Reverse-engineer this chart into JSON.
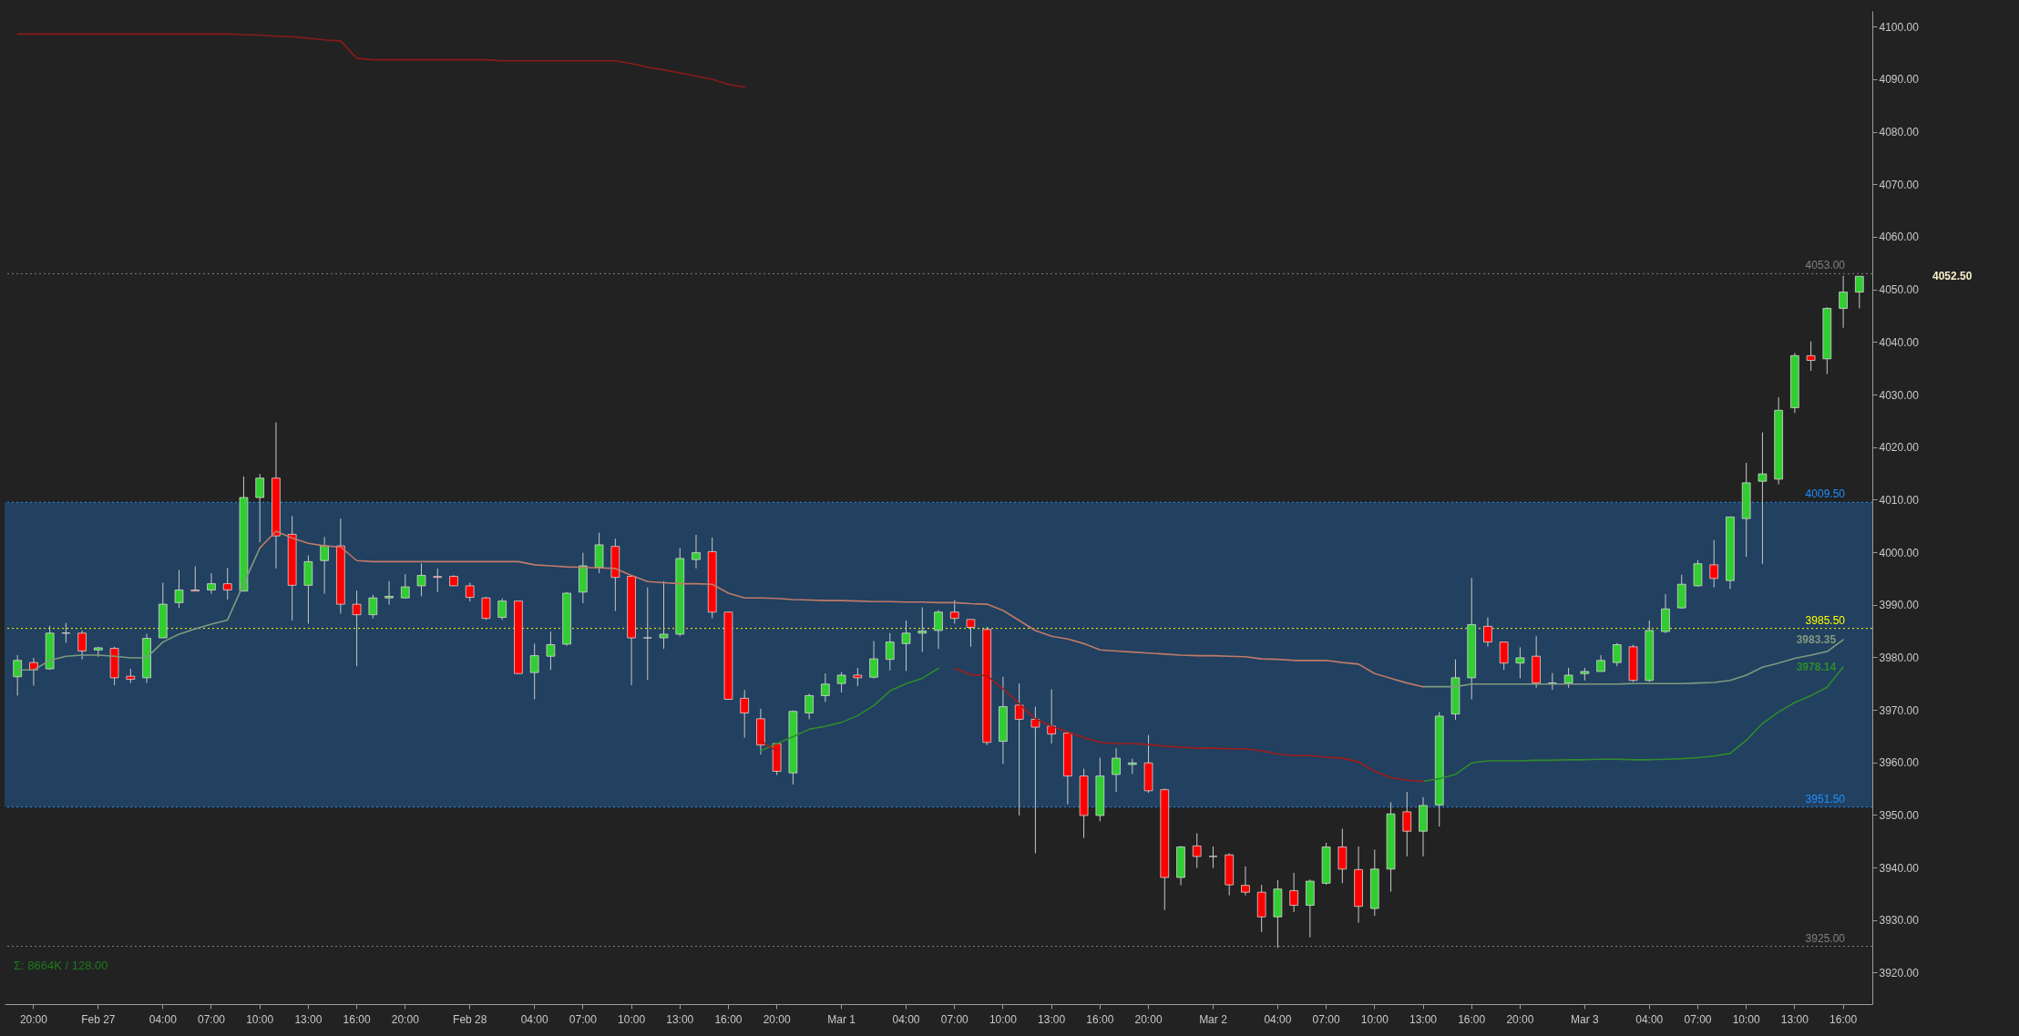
{
  "chart_data": {
    "type": "candlestick",
    "categories": [
      null,
      "20:00",
      null,
      null,
      null,
      "Feb 27",
      null,
      null,
      null,
      "04:00",
      null,
      null,
      "07:00",
      null,
      null,
      "10:00",
      null,
      null,
      "13:00",
      null,
      null,
      "16:00",
      null,
      null,
      "20:00",
      null,
      null,
      null,
      "Feb 28",
      null,
      null,
      null,
      "04:00",
      null,
      null,
      "07:00",
      null,
      null,
      "10:00",
      null,
      null,
      "13:00",
      null,
      null,
      "16:00",
      null,
      null,
      "20:00",
      null,
      null,
      null,
      "Mar 1",
      null,
      null,
      null,
      "04:00",
      null,
      null,
      "07:00",
      null,
      null,
      "10:00",
      null,
      null,
      "13:00",
      null,
      null,
      "16:00",
      null,
      null,
      "20:00",
      null,
      null,
      null,
      "Mar 2",
      null,
      null,
      null,
      "04:00",
      null,
      null,
      "07:00",
      null,
      null,
      "10:00",
      null,
      null,
      "13:00",
      null,
      null,
      "16:00",
      null,
      null,
      "20:00",
      null,
      null,
      null,
      "Mar 3",
      null,
      null,
      null,
      "04:00",
      null,
      null,
      "07:00",
      null,
      null,
      "10:00",
      null,
      null,
      "13:00",
      null,
      null,
      "16:00",
      null
    ],
    "ohlc": [
      [
        3976.3,
        3980.4,
        3972.7,
        3979.4
      ],
      [
        3979.0,
        3979.9,
        3974.6,
        3977.6
      ],
      [
        3977.8,
        3986.0,
        3977.6,
        3984.6
      ],
      [
        3984.6,
        3986.5,
        3982.8,
        3984.6
      ],
      [
        3984.6,
        3985.1,
        3979.6,
        3981.2
      ],
      [
        3981.4,
        3982.0,
        3980.1,
        3981.8
      ],
      [
        3981.7,
        3982.0,
        3974.7,
        3976.1
      ],
      [
        3976.4,
        3977.8,
        3975.1,
        3975.8
      ],
      [
        3976.1,
        3984.5,
        3975.1,
        3983.6
      ],
      [
        3983.7,
        3994.2,
        3983.7,
        3990.1
      ],
      [
        3990.4,
        3996.6,
        3989.4,
        3992.8
      ],
      [
        3992.8,
        3997.3,
        3992.6,
        3992.6
      ],
      [
        3992.8,
        3996.0,
        3992.1,
        3994.0
      ],
      [
        3994.0,
        3997.0,
        3991.0,
        3992.8
      ],
      [
        3992.6,
        4014.4,
        3992.6,
        4010.4
      ],
      [
        4010.4,
        4014.9,
        4001.9,
        4014.1
      ],
      [
        4014.1,
        4024.7,
        3996.9,
        4003.1
      ],
      [
        4003.4,
        4006.9,
        3987.0,
        3993.7
      ],
      [
        3993.7,
        3999.4,
        3986.4,
        3998.2
      ],
      [
        3998.4,
        4002.9,
        3992.1,
        4001.2
      ],
      [
        4001.2,
        4006.4,
        3988.3,
        3990.1
      ],
      [
        3990.1,
        3992.7,
        3978.3,
        3988.1
      ],
      [
        3988.1,
        3991.9,
        3987.4,
        3991.3
      ],
      [
        3991.3,
        3994.5,
        3990.0,
        3991.6
      ],
      [
        3991.3,
        3995.8,
        3991.2,
        3993.4
      ],
      [
        3993.6,
        3997.9,
        3991.6,
        3995.6
      ],
      [
        3995.4,
        3996.9,
        3992.4,
        3995.2
      ],
      [
        3995.4,
        3995.6,
        3993.6,
        3993.6
      ],
      [
        3993.6,
        3994.2,
        3990.6,
        3991.4
      ],
      [
        3991.3,
        3991.5,
        3987.1,
        3987.4
      ],
      [
        3987.6,
        3991.2,
        3987.1,
        3990.7
      ],
      [
        3990.7,
        3990.7,
        3976.9,
        3976.9
      ],
      [
        3977.1,
        3982.6,
        3972.0,
        3980.3
      ],
      [
        3980.2,
        3984.9,
        3977.6,
        3982.4
      ],
      [
        3982.5,
        3992.4,
        3982.2,
        3992.2
      ],
      [
        3992.4,
        3999.9,
        3990.3,
        3997.4
      ],
      [
        3997.1,
        4003.7,
        3996.0,
        4001.4
      ],
      [
        4001.1,
        4002.6,
        3988.8,
        3995.2
      ],
      [
        3995.4,
        3995.4,
        3974.7,
        3983.7
      ],
      [
        3983.7,
        3993.3,
        3975.7,
        3983.7
      ],
      [
        3983.7,
        3994.5,
        3981.6,
        3984.4
      ],
      [
        3984.4,
        4000.8,
        3984.0,
        3998.8
      ],
      [
        3998.6,
        4003.3,
        3996.9,
        3999.9
      ],
      [
        4000.1,
        4002.8,
        3987.4,
        3988.6
      ],
      [
        3988.6,
        3988.6,
        3971.9,
        3972.0
      ],
      [
        3972.2,
        3973.8,
        3964.7,
        3969.4
      ],
      [
        3968.3,
        3970.2,
        3961.5,
        3963.3
      ],
      [
        3963.6,
        3963.6,
        3957.6,
        3958.3
      ],
      [
        3958.0,
        3969.9,
        3955.8,
        3969.7
      ],
      [
        3969.4,
        3973.1,
        3968.2,
        3972.7
      ],
      [
        3972.7,
        3976.9,
        3971.5,
        3974.9
      ],
      [
        3975.0,
        3977.2,
        3973.3,
        3976.6
      ],
      [
        3976.6,
        3978.0,
        3974.5,
        3976.1
      ],
      [
        3976.2,
        3983.1,
        3976.0,
        3979.7
      ],
      [
        3979.6,
        3984.6,
        3977.5,
        3982.9
      ],
      [
        3982.6,
        3987.0,
        3977.4,
        3984.6
      ],
      [
        3984.6,
        3989.5,
        3981.0,
        3985.0
      ],
      [
        3985.1,
        3989.0,
        3981.6,
        3988.6
      ],
      [
        3988.6,
        3990.9,
        3986.4,
        3987.4
      ],
      [
        3987.2,
        3987.2,
        3982.0,
        3985.7
      ],
      [
        3985.3,
        3985.8,
        3963.3,
        3963.8
      ],
      [
        3964.0,
        3976.3,
        3959.7,
        3970.6
      ],
      [
        3970.9,
        3975.0,
        3949.9,
        3968.2
      ],
      [
        3968.2,
        3970.6,
        3942.7,
        3966.7
      ],
      [
        3966.9,
        3973.9,
        3963.6,
        3965.4
      ],
      [
        3965.6,
        3965.6,
        3952.0,
        3957.4
      ],
      [
        3957.4,
        3958.8,
        3945.6,
        3949.9
      ],
      [
        3949.9,
        3960.9,
        3948.8,
        3957.4
      ],
      [
        3957.7,
        3962.7,
        3954.4,
        3960.8
      ],
      [
        3959.6,
        3960.7,
        3957.8,
        3959.9
      ],
      [
        3959.9,
        3965.2,
        3954.2,
        3954.6
      ],
      [
        3954.8,
        3955.0,
        3931.9,
        3938.1
      ],
      [
        3938.1,
        3944.1,
        3936.6,
        3943.9
      ],
      [
        3944.1,
        3946.5,
        3939.9,
        3942.1
      ],
      [
        3942.1,
        3944.0,
        3939.9,
        3942.1
      ],
      [
        3942.4,
        3942.7,
        3934.7,
        3936.7
      ],
      [
        3936.6,
        3940.2,
        3934.7,
        3935.3
      ],
      [
        3935.3,
        3936.7,
        3927.7,
        3930.6
      ],
      [
        3930.6,
        3937.6,
        3924.7,
        3935.9
      ],
      [
        3935.6,
        3939.0,
        3931.5,
        3932.8
      ],
      [
        3932.8,
        3937.7,
        3926.7,
        3937.4
      ],
      [
        3937.0,
        3944.7,
        3936.7,
        3943.9
      ],
      [
        3943.9,
        3947.4,
        3937.0,
        3939.7
      ],
      [
        3939.6,
        3944.0,
        3929.5,
        3932.6
      ],
      [
        3932.2,
        3943.4,
        3930.8,
        3939.7
      ],
      [
        3939.7,
        3952.4,
        3935.4,
        3950.2
      ],
      [
        3950.6,
        3954.4,
        3942.1,
        3946.9
      ],
      [
        3946.9,
        3953.4,
        3942.1,
        3951.8
      ],
      [
        3951.9,
        3969.6,
        3947.8,
        3968.8
      ],
      [
        3969.2,
        3979.6,
        3968.1,
        3976.1
      ],
      [
        3976.1,
        3995.1,
        3972.0,
        3986.2
      ],
      [
        3985.9,
        3987.6,
        3982.0,
        3982.9
      ],
      [
        3982.9,
        3982.9,
        3977.6,
        3978.9
      ],
      [
        3978.9,
        3981.9,
        3976.0,
        3979.9
      ],
      [
        3980.2,
        3984.0,
        3974.2,
        3975.1
      ],
      [
        3975.1,
        3977.0,
        3973.8,
        3975.1
      ],
      [
        3975.1,
        3978.0,
        3974.2,
        3976.6
      ],
      [
        3976.9,
        3978.0,
        3975.6,
        3977.3
      ],
      [
        3977.3,
        3980.4,
        3977.3,
        3979.4
      ],
      [
        3979.0,
        3982.7,
        3978.3,
        3982.4
      ],
      [
        3982.0,
        3982.4,
        3975.3,
        3975.6
      ],
      [
        3975.6,
        3987.0,
        3975.3,
        3985.1
      ],
      [
        3984.9,
        3992.0,
        3984.6,
        3989.2
      ],
      [
        3989.4,
        3995.7,
        3989.2,
        3993.9
      ],
      [
        3993.6,
        3998.5,
        3993.4,
        3997.8
      ],
      [
        3997.6,
        4002.3,
        3993.3,
        3995.0
      ],
      [
        3994.6,
        4006.7,
        3993.0,
        4006.7
      ],
      [
        4006.4,
        4017.0,
        3999.1,
        4013.2
      ],
      [
        4013.5,
        4022.8,
        3997.8,
        4014.9
      ],
      [
        4013.9,
        4029.5,
        4012.9,
        4027.0
      ],
      [
        4027.5,
        4037.9,
        4026.5,
        4037.4
      ],
      [
        4037.4,
        4040.1,
        4034.5,
        4036.5
      ],
      [
        4036.8,
        4046.6,
        4033.9,
        4046.4
      ],
      [
        4046.4,
        4052.6,
        4042.7,
        4049.5
      ],
      [
        4049.5,
        4052.5,
        4046.4,
        4052.5
      ]
    ],
    "colors": [
      "#32cd32",
      "#ff0000",
      "#32cd32",
      "#c8c8c8",
      "#ff0000",
      "#32cd32",
      "#ff0000",
      "#ff0000",
      "#32cd32",
      "#32cd32",
      "#32cd32",
      "#ff0000",
      "#32cd32",
      "#ff0000",
      "#32cd32",
      "#32cd32",
      "#ff0000",
      "#ff0000",
      "#32cd32",
      "#32cd32",
      "#ff0000",
      "#ff0000",
      "#32cd32",
      "#32cd32",
      "#32cd32",
      "#32cd32",
      "#ff0000",
      "#ff0000",
      "#ff0000",
      "#ff0000",
      "#32cd32",
      "#ff0000",
      "#32cd32",
      "#32cd32",
      "#32cd32",
      "#32cd32",
      "#32cd32",
      "#ff0000",
      "#ff0000",
      "#c8c8c8",
      "#32cd32",
      "#32cd32",
      "#32cd32",
      "#ff0000",
      "#ff0000",
      "#ff0000",
      "#ff0000",
      "#ff0000",
      "#32cd32",
      "#32cd32",
      "#32cd32",
      "#32cd32",
      "#ff0000",
      "#32cd32",
      "#32cd32",
      "#32cd32",
      "#32cd32",
      "#32cd32",
      "#ff0000",
      "#ff0000",
      "#ff0000",
      "#32cd32",
      "#ff0000",
      "#ff0000",
      "#ff0000",
      "#ff0000",
      "#ff0000",
      "#32cd32",
      "#32cd32",
      "#32cd32",
      "#ff0000",
      "#ff0000",
      "#32cd32",
      "#ff0000",
      "#c8c8c8",
      "#ff0000",
      "#ff0000",
      "#ff0000",
      "#32cd32",
      "#ff0000",
      "#32cd32",
      "#32cd32",
      "#ff0000",
      "#ff0000",
      "#32cd32",
      "#32cd32",
      "#ff0000",
      "#32cd32",
      "#32cd32",
      "#32cd32",
      "#32cd32",
      "#ff0000",
      "#ff0000",
      "#32cd32",
      "#ff0000",
      "#c8c8c8",
      "#32cd32",
      "#32cd32",
      "#32cd32",
      "#32cd32",
      "#ff0000",
      "#32cd32",
      "#32cd32",
      "#32cd32",
      "#32cd32",
      "#ff0000",
      "#32cd32",
      "#32cd32",
      "#32cd32",
      "#32cd32",
      "#32cd32",
      "#ff0000",
      "#32cd32",
      "#32cd32",
      "#32cd32"
    ],
    "series": [
      {
        "type": "line",
        "color": "#8b1a1a",
        "values": [
          4098.6,
          4098.6,
          4098.6,
          4098.6,
          4098.6,
          4098.6,
          4098.6,
          4098.6,
          4098.6,
          4098.6,
          4098.6,
          4098.6,
          4098.6,
          4098.6,
          4098.5,
          4098.4,
          4098.2,
          4098.1,
          4097.8,
          4097.5,
          4097.3,
          4094.0,
          4093.7,
          4093.7,
          4093.7,
          4093.7,
          4093.7,
          4093.7,
          4093.7,
          4093.7,
          4093.5,
          4093.5,
          4093.5,
          4093.5,
          4093.5,
          4093.5,
          4093.5,
          4093.5,
          4093.0,
          4092.3,
          4091.8,
          4091.2,
          4090.6,
          4090.0,
          4089.0,
          4088.5,
          null,
          null,
          null,
          null,
          null,
          null,
          null,
          null,
          null,
          null,
          null,
          null,
          null,
          null,
          null,
          null,
          null,
          null,
          null,
          null,
          null,
          null,
          null,
          null,
          null,
          null,
          null,
          null,
          null,
          null,
          null,
          null,
          null,
          null,
          null,
          null,
          null,
          null,
          null,
          null,
          null,
          null,
          null,
          null,
          null,
          null,
          null,
          null,
          null,
          null,
          null,
          null,
          null,
          null,
          null,
          null,
          null,
          null,
          null,
          null,
          null,
          null,
          null,
          null,
          null,
          null,
          null,
          null,
          null
        ]
      },
      {
        "type": "line",
        "color": "#7f9a80",
        "values": [
          3977.6,
          3977.6,
          3979.4,
          3980.2,
          3980.4,
          3980.4,
          3980.2,
          3979.9,
          3979.9,
          3982.9,
          3984.4,
          3985.4,
          3986.3,
          3987.1,
          3994.0,
          4000.8,
          null,
          null,
          null,
          null,
          null,
          null,
          null,
          null,
          null,
          null,
          null,
          null,
          null,
          null,
          null,
          null,
          null,
          null,
          null,
          null,
          null,
          null,
          null,
          null,
          null,
          null,
          null,
          null,
          null,
          null,
          null,
          null,
          null,
          null,
          null,
          null,
          null,
          null,
          null,
          null,
          null,
          null,
          null,
          null,
          null,
          null,
          null,
          null,
          null,
          null,
          null,
          null,
          null,
          null,
          null,
          null,
          null,
          null,
          null,
          null,
          null,
          null,
          null,
          null,
          null,
          null,
          null,
          null,
          null,
          null,
          null,
          3974.4,
          3974.4,
          3974.4,
          3974.9,
          3974.9,
          3974.9,
          3974.9,
          3974.9,
          3974.9,
          3974.9,
          3974.9,
          3974.9,
          3974.9,
          3975.0,
          3975.0,
          3975.0,
          3975.0,
          3975.1,
          3975.2,
          3975.6,
          3976.6,
          3978.1,
          3978.9,
          3979.8,
          3980.4,
          3981.1,
          3983.35,
          null
        ],
        "value_labels": [
          null,
          null,
          null,
          null,
          null,
          null,
          null,
          null,
          null,
          null,
          null,
          null,
          null,
          null,
          null,
          null,
          null,
          null,
          null,
          null,
          null,
          null,
          null,
          null,
          null,
          null,
          null,
          null,
          null,
          null,
          null,
          null,
          null,
          null,
          null,
          null,
          null,
          null,
          null,
          null,
          null,
          null,
          null,
          null,
          null,
          null,
          null,
          null,
          null,
          null,
          null,
          null,
          null,
          null,
          null,
          null,
          null,
          null,
          null,
          null,
          null,
          null,
          null,
          null,
          null,
          null,
          null,
          null,
          null,
          null,
          null,
          null,
          null,
          null,
          null,
          null,
          null,
          null,
          null,
          null,
          null,
          null,
          null,
          null,
          null,
          null,
          null,
          null,
          null,
          null,
          null,
          null,
          null,
          null,
          null,
          null,
          null,
          null,
          null,
          null,
          null,
          null,
          null,
          null,
          null,
          null,
          null,
          null,
          null,
          null,
          null,
          null,
          null,
          "3983.35",
          null
        ]
      },
      {
        "type": "line",
        "color": "#c07a6a",
        "values": [
          null,
          null,
          null,
          null,
          null,
          null,
          null,
          null,
          null,
          null,
          null,
          null,
          null,
          null,
          null,
          4000.8,
          4004.0,
          4002.7,
          4001.7,
          4001.2,
          4001.0,
          3998.4,
          3998.2,
          3998.2,
          3998.2,
          3998.2,
          3998.2,
          3998.2,
          3998.2,
          3998.2,
          3998.2,
          3998.2,
          3997.6,
          3997.4,
          3997.2,
          3997.1,
          3997.0,
          3996.9,
          3995.6,
          3994.4,
          3994.2,
          3994.0,
          3994.0,
          3993.9,
          3992.2,
          3991.3,
          3991.3,
          3991.2,
          3991.0,
          3990.9,
          3990.8,
          3990.8,
          3990.7,
          3990.6,
          3990.6,
          3990.5,
          3990.5,
          3990.4,
          3990.4,
          3990.2,
          3990.1,
          3988.9,
          3987.0,
          3985.1,
          3984.0,
          3983.5,
          3982.6,
          3981.4,
          3981.2,
          3981.0,
          3980.8,
          3980.6,
          3980.4,
          3980.3,
          3980.3,
          3980.2,
          3980.1,
          3979.7,
          3979.6,
          3979.4,
          3979.4,
          3979.4,
          3979.0,
          3978.7,
          3976.9,
          3976.0,
          3975.1,
          3974.4,
          null,
          null,
          null,
          null,
          null,
          null,
          null,
          null,
          null,
          null,
          null,
          null,
          null,
          null,
          null,
          null,
          null,
          null,
          null,
          null,
          null,
          null,
          null,
          null,
          null,
          null,
          null
        ]
      },
      {
        "type": "line",
        "color": "#2e8b2e",
        "values": [
          null,
          null,
          null,
          null,
          null,
          null,
          null,
          null,
          null,
          null,
          null,
          null,
          null,
          null,
          null,
          null,
          null,
          null,
          null,
          null,
          null,
          null,
          null,
          null,
          null,
          null,
          null,
          null,
          null,
          null,
          null,
          null,
          null,
          null,
          null,
          null,
          null,
          null,
          null,
          null,
          null,
          null,
          null,
          null,
          null,
          null,
          3962.2,
          3963.6,
          3964.9,
          3966.3,
          3966.9,
          3967.6,
          3968.9,
          3970.8,
          3973.6,
          3975.0,
          3976.0,
          3977.9,
          null,
          null,
          null,
          null,
          null,
          null,
          null,
          null,
          null,
          null,
          null,
          null,
          null,
          null,
          null,
          null,
          null,
          null,
          null,
          null,
          null,
          null,
          null,
          null,
          null,
          null,
          null,
          null,
          null,
          3956.4,
          3956.9,
          3957.7,
          3959.9,
          3960.3,
          3960.3,
          3960.3,
          3960.4,
          3960.4,
          3960.5,
          3960.5,
          3960.6,
          3960.6,
          3960.5,
          3960.5,
          3960.6,
          3960.7,
          3960.9,
          3961.2,
          3961.7,
          3964.2,
          3967.4,
          3969.6,
          3971.4,
          3972.7,
          3974.3,
          3978.14,
          null
        ],
        "value_labels": [
          null,
          null,
          null,
          null,
          null,
          null,
          null,
          null,
          null,
          null,
          null,
          null,
          null,
          null,
          null,
          null,
          null,
          null,
          null,
          null,
          null,
          null,
          null,
          null,
          null,
          null,
          null,
          null,
          null,
          null,
          null,
          null,
          null,
          null,
          null,
          null,
          null,
          null,
          null,
          null,
          null,
          null,
          null,
          null,
          null,
          null,
          null,
          null,
          null,
          null,
          null,
          null,
          null,
          null,
          null,
          null,
          null,
          null,
          null,
          null,
          null,
          null,
          null,
          null,
          null,
          null,
          null,
          null,
          null,
          null,
          null,
          null,
          null,
          null,
          null,
          null,
          null,
          null,
          null,
          null,
          null,
          null,
          null,
          null,
          null,
          null,
          null,
          null,
          null,
          null,
          null,
          null,
          null,
          null,
          null,
          null,
          null,
          null,
          null,
          null,
          null,
          null,
          null,
          null,
          null,
          null,
          null,
          null,
          null,
          null,
          null,
          null,
          null,
          "3978.14",
          null
        ]
      },
      {
        "type": "line",
        "color": "#a01c1c",
        "values": [
          null,
          null,
          null,
          null,
          null,
          null,
          null,
          null,
          null,
          null,
          null,
          null,
          null,
          null,
          null,
          null,
          null,
          null,
          null,
          null,
          null,
          null,
          null,
          null,
          null,
          null,
          null,
          null,
          null,
          null,
          null,
          null,
          null,
          null,
          null,
          null,
          null,
          null,
          null,
          null,
          null,
          null,
          null,
          null,
          null,
          null,
          3964.0,
          3962.2,
          null,
          null,
          null,
          null,
          null,
          null,
          null,
          null,
          null,
          null,
          3977.9,
          3976.7,
          3976.5,
          3974.0,
          3971.2,
          3968.3,
          3966.9,
          3965.8,
          3964.7,
          3963.8,
          3963.6,
          3963.6,
          3963.4,
          3963.1,
          3962.9,
          3962.7,
          3962.7,
          3962.6,
          3962.6,
          3962.2,
          3961.6,
          3961.3,
          3961.3,
          3961.0,
          3960.8,
          3960.1,
          3958.3,
          3957.1,
          3956.6,
          3956.4,
          null,
          null,
          null,
          null,
          null,
          null,
          null,
          null,
          null,
          null,
          null,
          null,
          null,
          null,
          null,
          null,
          null,
          null,
          null,
          null,
          null,
          null,
          null,
          null,
          null,
          null,
          null
        ]
      }
    ],
    "ylim": [
      3914,
      4103
    ],
    "yticks": [
      {
        "value": 3920,
        "label": "3920.00"
      },
      {
        "value": 3930,
        "label": "3930.00"
      },
      {
        "value": 3940,
        "label": "3940.00"
      },
      {
        "value": 3950,
        "label": "3950.00"
      },
      {
        "value": 3960,
        "label": "3960.00"
      },
      {
        "value": 3970,
        "label": "3970.00"
      },
      {
        "value": 3980,
        "label": "3980.00"
      },
      {
        "value": 3990,
        "label": "3990.00"
      },
      {
        "value": 4000,
        "label": "4000.00"
      },
      {
        "value": 4010,
        "label": "4010.00"
      },
      {
        "value": 4020,
        "label": "4020.00"
      },
      {
        "value": 4030,
        "label": "4030.00"
      },
      {
        "value": 4040,
        "label": "4040.00"
      },
      {
        "value": 4050,
        "label": "4050.00"
      },
      {
        "value": 4060,
        "label": "4060.00"
      },
      {
        "value": 4070,
        "label": "4070.00"
      },
      {
        "value": 4080,
        "label": "4080.00"
      },
      {
        "value": 4090,
        "label": "4090.00"
      },
      {
        "value": 4100,
        "label": "4100.00"
      }
    ],
    "ref_lines": [
      {
        "axis": "y",
        "value": 4053,
        "label": "4053.00",
        "color": "#808080",
        "line_style": "dotted"
      },
      {
        "axis": "y",
        "value": 4009.5,
        "label": "4009.50",
        "color": "#1e90ff",
        "line_style": "dotted"
      },
      {
        "axis": "y",
        "value": 3985.5,
        "label": "3985.50",
        "color": "#ffff00",
        "line_style": "dotted"
      },
      {
        "axis": "y",
        "value": 3951.5,
        "label": "3951.50",
        "color": "#1e90ff",
        "line_style": "dotted"
      },
      {
        "axis": "y",
        "value": 3925,
        "label": "3925.00",
        "color": "#808080",
        "line_style": "dotted"
      }
    ],
    "bands": [
      {
        "axis": "y",
        "from": 3951.5,
        "to": 4009.5,
        "color": "#2277d0"
      }
    ],
    "value_labels": [
      null,
      null,
      null,
      null,
      null,
      null,
      null,
      null,
      null,
      null,
      null,
      null,
      null,
      null,
      null,
      null,
      null,
      null,
      null,
      null,
      null,
      null,
      null,
      null,
      null,
      null,
      null,
      null,
      null,
      null,
      null,
      null,
      null,
      null,
      null,
      null,
      null,
      null,
      null,
      null,
      null,
      null,
      null,
      null,
      null,
      null,
      null,
      null,
      null,
      null,
      null,
      null,
      null,
      null,
      null,
      null,
      null,
      null,
      null,
      null,
      null,
      null,
      null,
      null,
      null,
      null,
      null,
      null,
      null,
      null,
      null,
      null,
      null,
      null,
      null,
      null,
      null,
      null,
      null,
      null,
      null,
      null,
      null,
      null,
      null,
      null,
      null,
      null,
      null,
      null,
      null,
      null,
      null,
      null,
      null,
      null,
      null,
      null,
      null,
      null,
      null,
      null,
      null,
      null,
      null,
      null,
      null,
      null,
      null,
      null,
      null,
      null,
      null,
      null,
      "4052.50"
    ],
    "annotations": [
      "Σ: 8664K / 128.00"
    ]
  }
}
